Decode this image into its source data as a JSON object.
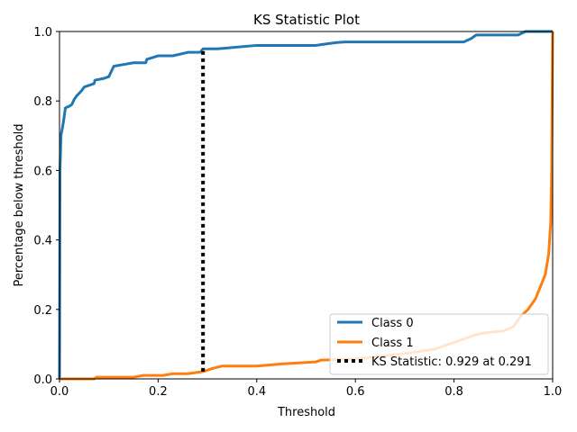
{
  "chart_data": {
    "type": "line",
    "title": "KS Statistic Plot",
    "xlabel": "Threshold",
    "ylabel": "Percentage below threshold",
    "xlim": [
      0,
      1
    ],
    "ylim": [
      0,
      1
    ],
    "x_ticks": [
      "0.0",
      "0.2",
      "0.4",
      "0.6",
      "0.8",
      "1.0"
    ],
    "y_ticks": [
      "0.0",
      "0.2",
      "0.4",
      "0.6",
      "0.8",
      "1.0"
    ],
    "grid": false,
    "legend_position": "lower-right",
    "series": [
      {
        "name": "Class 0",
        "color": "#1f77b4",
        "points": [
          [
            0,
            0
          ],
          [
            0.001,
            0.6
          ],
          [
            0.003,
            0.7
          ],
          [
            0.008,
            0.74
          ],
          [
            0.012,
            0.78
          ],
          [
            0.02,
            0.785
          ],
          [
            0.025,
            0.79
          ],
          [
            0.03,
            0.805
          ],
          [
            0.035,
            0.815
          ],
          [
            0.045,
            0.83
          ],
          [
            0.05,
            0.84
          ],
          [
            0.06,
            0.845
          ],
          [
            0.07,
            0.85
          ],
          [
            0.072,
            0.86
          ],
          [
            0.09,
            0.865
          ],
          [
            0.1,
            0.87
          ],
          [
            0.105,
            0.885
          ],
          [
            0.11,
            0.9
          ],
          [
            0.13,
            0.905
          ],
          [
            0.15,
            0.91
          ],
          [
            0.175,
            0.91
          ],
          [
            0.177,
            0.92
          ],
          [
            0.2,
            0.93
          ],
          [
            0.23,
            0.93
          ],
          [
            0.26,
            0.94
          ],
          [
            0.285,
            0.94
          ],
          [
            0.291,
            0.95
          ],
          [
            0.32,
            0.95
          ],
          [
            0.4,
            0.96
          ],
          [
            0.52,
            0.96
          ],
          [
            0.53,
            0.962
          ],
          [
            0.56,
            0.968
          ],
          [
            0.58,
            0.97
          ],
          [
            0.82,
            0.97
          ],
          [
            0.835,
            0.98
          ],
          [
            0.845,
            0.99
          ],
          [
            0.93,
            0.99
          ],
          [
            0.945,
            1.0
          ],
          [
            1.0,
            1.0
          ]
        ]
      },
      {
        "name": "Class 1",
        "color": "#ff7f0e",
        "points": [
          [
            0,
            0
          ],
          [
            0.07,
            0
          ],
          [
            0.075,
            0.005
          ],
          [
            0.15,
            0.005
          ],
          [
            0.17,
            0.01
          ],
          [
            0.21,
            0.01
          ],
          [
            0.23,
            0.015
          ],
          [
            0.26,
            0.015
          ],
          [
            0.291,
            0.021
          ],
          [
            0.31,
            0.03
          ],
          [
            0.33,
            0.037
          ],
          [
            0.4,
            0.037
          ],
          [
            0.45,
            0.043
          ],
          [
            0.52,
            0.049
          ],
          [
            0.53,
            0.054
          ],
          [
            0.6,
            0.057
          ],
          [
            0.65,
            0.065
          ],
          [
            0.7,
            0.073
          ],
          [
            0.76,
            0.085
          ],
          [
            0.8,
            0.105
          ],
          [
            0.82,
            0.115
          ],
          [
            0.84,
            0.125
          ],
          [
            0.86,
            0.132
          ],
          [
            0.9,
            0.138
          ],
          [
            0.92,
            0.15
          ],
          [
            0.935,
            0.18
          ],
          [
            0.95,
            0.2
          ],
          [
            0.965,
            0.23
          ],
          [
            0.975,
            0.265
          ],
          [
            0.985,
            0.3
          ],
          [
            0.992,
            0.36
          ],
          [
            0.996,
            0.45
          ],
          [
            0.998,
            0.6
          ],
          [
            0.999,
            0.8
          ],
          [
            1.0,
            1.0
          ]
        ]
      }
    ],
    "ks_line": {
      "name": "KS Statistic: 0.929 at 0.291",
      "x": 0.291,
      "y_from": 0.021,
      "y_to": 0.95,
      "color": "#000000"
    }
  }
}
